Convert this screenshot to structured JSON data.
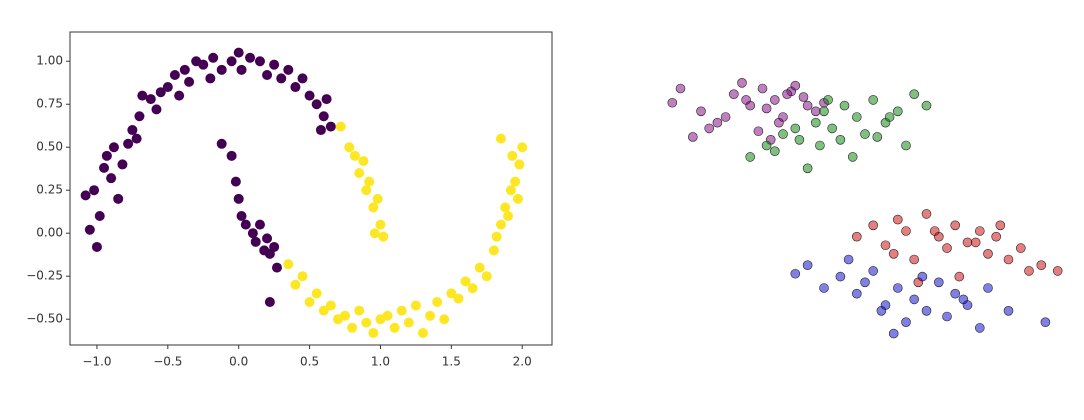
{
  "chart_data": [
    {
      "type": "scatter",
      "xlim": [
        -1.19,
        2.21
      ],
      "ylim": [
        -0.65,
        1.17
      ],
      "xticks": [
        {
          "value": -1,
          "label": "−1.0"
        },
        {
          "value": -0.5,
          "label": "−0.5"
        },
        {
          "value": 0,
          "label": "0.0"
        },
        0.5,
        {
          "value": 1,
          "label": "1.0"
        },
        1.5,
        {
          "value": 2,
          "label": "2.0"
        }
      ],
      "yticks": [
        {
          "value": -0.5,
          "label": "−0.50"
        },
        {
          "value": -0.25,
          "label": "−0.25"
        },
        {
          "value": 0,
          "label": "0.00"
        },
        0.25,
        {
          "value": 0.5,
          "label": "0.50"
        },
        0.75,
        {
          "value": 1,
          "label": "1.00"
        }
      ],
      "frame": true,
      "series": [
        {
          "color": "#440154",
          "x": [
            -1.05,
            -1.08,
            -1.02,
            -0.98,
            -1.0,
            -0.95,
            -0.93,
            -0.9,
            -0.88,
            -0.85,
            -0.82,
            -0.78,
            -0.75,
            -0.72,
            -0.7,
            -0.68,
            -0.62,
            -0.58,
            -0.55,
            -0.5,
            -0.45,
            -0.42,
            -0.38,
            -0.35,
            -0.3,
            -0.25,
            -0.2,
            -0.18,
            -0.12,
            -0.05,
            0.0,
            0.02,
            0.08,
            0.15,
            0.2,
            0.25,
            0.3,
            0.35,
            0.4,
            0.45,
            0.5,
            0.55,
            0.6,
            0.62,
            0.58,
            0.65,
            -0.12,
            -0.05,
            -0.02,
            0.0,
            0.02,
            0.05,
            0.1,
            0.12,
            0.15,
            0.18,
            0.2,
            0.22,
            0.25,
            0.27,
            0.22
          ],
          "values": [
            0.02,
            0.22,
            0.25,
            0.1,
            -0.08,
            0.38,
            0.45,
            0.32,
            0.5,
            0.2,
            0.4,
            0.52,
            0.6,
            0.55,
            0.68,
            0.8,
            0.78,
            0.72,
            0.82,
            0.85,
            0.92,
            0.8,
            0.95,
            0.88,
            1.0,
            0.98,
            0.9,
            1.02,
            0.95,
            1.0,
            1.05,
            0.95,
            1.02,
            1.0,
            0.92,
            0.98,
            0.9,
            0.95,
            0.85,
            0.9,
            0.8,
            0.75,
            0.68,
            0.78,
            0.6,
            0.62,
            0.52,
            0.45,
            0.3,
            0.2,
            0.1,
            0.05,
            0.0,
            -0.05,
            0.05,
            -0.1,
            -0.03,
            -0.12,
            -0.08,
            -0.2,
            -0.4
          ]
        },
        {
          "color": "#fde725",
          "x": [
            0.72,
            0.78,
            0.82,
            0.85,
            0.88,
            0.9,
            0.92,
            0.95,
            0.98,
            1.0,
            0.96,
            1.02,
            0.35,
            0.4,
            0.45,
            0.5,
            0.55,
            0.6,
            0.65,
            0.7,
            0.75,
            0.8,
            0.85,
            0.9,
            0.95,
            1.0,
            1.05,
            1.1,
            1.15,
            1.2,
            1.25,
            1.3,
            1.35,
            1.4,
            1.45,
            1.5,
            1.55,
            1.6,
            1.65,
            1.7,
            1.75,
            1.8,
            1.82,
            1.85,
            1.88,
            1.9,
            1.92,
            1.95,
            1.98,
            2.0,
            1.97,
            1.93,
            1.85
          ],
          "values": [
            0.62,
            0.5,
            0.45,
            0.35,
            0.42,
            0.25,
            0.3,
            0.15,
            0.2,
            0.05,
            0.0,
            -0.02,
            -0.18,
            -0.3,
            -0.25,
            -0.4,
            -0.35,
            -0.45,
            -0.42,
            -0.5,
            -0.48,
            -0.55,
            -0.45,
            -0.52,
            -0.58,
            -0.5,
            -0.48,
            -0.55,
            -0.45,
            -0.52,
            -0.42,
            -0.58,
            -0.48,
            -0.4,
            -0.5,
            -0.35,
            -0.38,
            -0.28,
            -0.32,
            -0.2,
            -0.25,
            -0.1,
            -0.02,
            0.05,
            0.15,
            0.1,
            0.25,
            0.3,
            0.4,
            0.5,
            0.2,
            0.45,
            0.55
          ]
        }
      ]
    },
    {
      "type": "scatter",
      "xlim": [
        0,
        100
      ],
      "ylim": [
        0,
        100
      ],
      "frame": false,
      "series": [
        {
          "color": "#800080",
          "x": [
            3,
            5,
            10,
            14,
            18,
            20,
            22,
            25,
            28,
            30,
            32,
            35,
            36,
            38,
            40,
            24,
            27,
            16,
            12,
            33,
            21,
            29,
            26,
            31,
            8
          ],
          "values": [
            85,
            90,
            82,
            78,
            88,
            92,
            84,
            90,
            86,
            80,
            89,
            87,
            84,
            82,
            85,
            75,
            72,
            80,
            76,
            91,
            86,
            78,
            83,
            88,
            73
          ]
        },
        {
          "color": "#008000",
          "x": [
            22,
            26,
            30,
            34,
            38,
            40,
            42,
            45,
            48,
            50,
            52,
            55,
            58,
            60,
            62,
            65,
            36,
            44,
            47,
            28,
            33,
            56,
            41,
            53,
            39
          ],
          "values": [
            66,
            70,
            74,
            72,
            78,
            82,
            76,
            84,
            80,
            74,
            86,
            78,
            82,
            70,
            88,
            84,
            62,
            72,
            66,
            68,
            76,
            80,
            86,
            73,
            70
          ]
        },
        {
          "color": "#cc0000",
          "x": [
            48,
            52,
            55,
            58,
            60,
            62,
            65,
            68,
            70,
            72,
            75,
            78,
            80,
            82,
            85,
            88,
            90,
            93,
            97,
            63,
            67,
            73,
            77,
            57,
            83
          ],
          "values": [
            38,
            42,
            35,
            44,
            40,
            30,
            46,
            38,
            34,
            42,
            36,
            40,
            32,
            38,
            30,
            34,
            26,
            28,
            26,
            22,
            40,
            24,
            36,
            32,
            42
          ]
        },
        {
          "color": "#0000cc",
          "x": [
            33,
            36,
            40,
            44,
            48,
            50,
            52,
            55,
            58,
            60,
            62,
            65,
            68,
            70,
            72,
            75,
            78,
            80,
            85,
            94,
            46,
            54,
            64,
            74,
            57
          ],
          "values": [
            25,
            28,
            20,
            24,
            18,
            22,
            26,
            14,
            20,
            8,
            16,
            12,
            22,
            10,
            18,
            14,
            6,
            20,
            12,
            8,
            30,
            12,
            24,
            16,
            4
          ]
        }
      ]
    }
  ]
}
